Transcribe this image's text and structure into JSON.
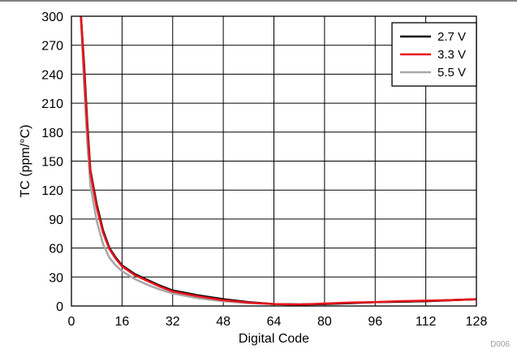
{
  "chart_data": {
    "type": "line",
    "title": "",
    "xlabel": "Digital Code",
    "ylabel": "TC (ppm/°C)",
    "figure_code": "D006",
    "xlim": [
      0,
      128
    ],
    "ylim": [
      0,
      300
    ],
    "xticks": [
      0,
      16,
      32,
      48,
      64,
      80,
      96,
      112,
      128
    ],
    "yticks": [
      0,
      30,
      60,
      90,
      120,
      150,
      180,
      210,
      240,
      270,
      300
    ],
    "grid": true,
    "legend_position": "top-right",
    "series": [
      {
        "name": "2.7 V",
        "color": "#000000",
        "x": [
          3,
          4,
          5,
          6,
          8,
          10,
          12,
          14,
          16,
          20,
          24,
          28,
          32,
          40,
          48,
          56,
          64,
          72,
          80,
          88,
          96,
          104,
          112,
          120,
          128
        ],
        "y": [
          300,
          250,
          190,
          140,
          105,
          78,
          60,
          50,
          42,
          33,
          27,
          21,
          16,
          11,
          7,
          4,
          2,
          1.5,
          2,
          3,
          4,
          4.5,
          5,
          6,
          7
        ]
      },
      {
        "name": "3.3 V",
        "color": "#e8141b",
        "x": [
          3,
          4,
          5,
          6,
          8,
          10,
          12,
          14,
          16,
          20,
          24,
          28,
          32,
          40,
          48,
          56,
          64,
          72,
          80,
          88,
          96,
          104,
          112,
          120,
          128
        ],
        "y": [
          300,
          245,
          185,
          138,
          102,
          76,
          59,
          49,
          41,
          32,
          26,
          20,
          15,
          10,
          6,
          3.5,
          2,
          1.5,
          2.5,
          3.5,
          4,
          5,
          5.5,
          6,
          7
        ]
      },
      {
        "name": "5.5 V",
        "color": "#a8a8a8",
        "x": [
          3,
          4,
          5,
          6,
          8,
          10,
          12,
          14,
          16,
          20,
          24,
          28,
          32,
          40,
          48,
          56,
          64,
          72,
          80,
          88,
          96,
          104,
          112,
          120,
          128
        ],
        "y": [
          300,
          230,
          170,
          125,
          88,
          64,
          50,
          42,
          36,
          28,
          22,
          17,
          13,
          8,
          5,
          3,
          2,
          1.5,
          2,
          3,
          4,
          4.5,
          5,
          6,
          7
        ]
      }
    ]
  }
}
